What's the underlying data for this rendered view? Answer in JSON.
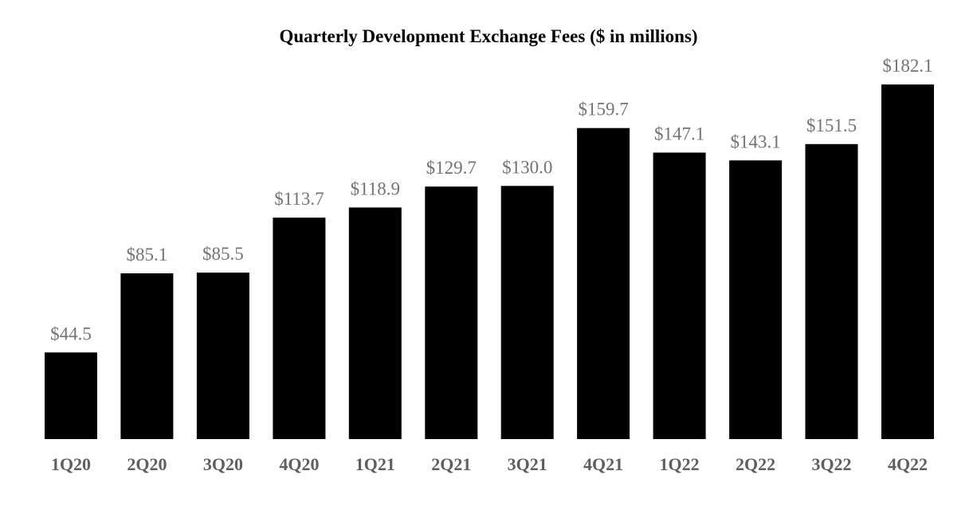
{
  "chart_data": {
    "type": "bar",
    "title": "Quarterly Development Exchange Fees ($ in millions)",
    "categories": [
      "1Q20",
      "2Q20",
      "3Q20",
      "4Q20",
      "1Q21",
      "2Q21",
      "3Q21",
      "4Q21",
      "1Q22",
      "2Q22",
      "3Q22",
      "4Q22"
    ],
    "values": [
      44.5,
      85.1,
      85.5,
      113.7,
      118.9,
      129.7,
      130.0,
      159.7,
      147.1,
      143.1,
      151.5,
      182.1
    ],
    "data_labels": [
      "$44.5",
      "$85.1",
      "$85.5",
      "$113.7",
      "$118.9",
      "$129.7",
      "$130.0",
      "$159.7",
      "$147.1",
      "$143.1",
      "$151.5",
      "$182.1"
    ],
    "xlabel": "",
    "ylabel": "",
    "ylim": [
      0,
      182.1
    ],
    "grid": false,
    "legend": "none",
    "colors": {
      "bar": "#000000",
      "data_label": "#737373",
      "tick_label": "#5f5f5f"
    }
  }
}
